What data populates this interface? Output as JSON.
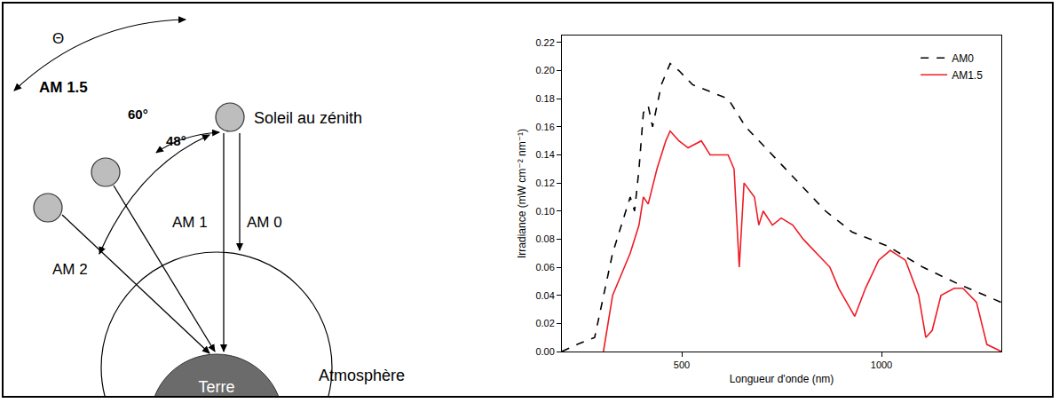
{
  "chart_data": {
    "type": "line",
    "x_label": "Longueur d'onde (nm)",
    "y_label": "Irradiance (mW cm⁻² nm⁻¹)",
    "xlim": [
      200,
      1300
    ],
    "xticks": [
      500,
      1000
    ],
    "ylim": [
      0,
      0.225
    ],
    "yticks": [
      {
        "value": 0,
        "label": "0.00"
      },
      {
        "value": 0.02,
        "label": "0.02"
      },
      {
        "value": 0.04,
        "label": "0.04"
      },
      {
        "value": 0.06,
        "label": "0.06"
      },
      {
        "value": 0.08,
        "label": "0.08"
      },
      {
        "value": 0.1,
        "label": "0.10"
      },
      {
        "value": 0.12,
        "label": "0.12"
      },
      {
        "value": 0.14,
        "label": "0.14"
      },
      {
        "value": 0.16,
        "label": "0.16"
      },
      {
        "value": 0.18,
        "label": "0.18"
      },
      {
        "value": 0.2,
        "label": "0.20"
      },
      {
        "value": 0.22,
        "label": "0.22"
      }
    ],
    "grid": false,
    "legend": "top-right",
    "series": [
      {
        "name": "AM0",
        "color": "#000000",
        "line_style": "dash",
        "x": [
          200,
          238,
          282,
          304,
          327,
          349,
          371,
          382,
          393,
          404,
          416,
          427,
          449,
          471,
          493,
          527,
          571,
          616,
          660,
          727,
          793,
          860,
          927,
          1016,
          1104,
          1193,
          1300
        ],
        "values": [
          0,
          0.005,
          0.01,
          0.04,
          0.07,
          0.09,
          0.11,
          0.1,
          0.13,
          0.17,
          0.175,
          0.16,
          0.19,
          0.205,
          0.2,
          0.19,
          0.185,
          0.18,
          0.16,
          0.14,
          0.12,
          0.1,
          0.085,
          0.075,
          0.06,
          0.048,
          0.035
        ]
      },
      {
        "name": "AM1.5",
        "color": "#ee1c25",
        "line_style": "solid",
        "x": [
          304,
          327,
          349,
          371,
          393,
          404,
          416,
          438,
          460,
          471,
          493,
          516,
          549,
          571,
          616,
          631,
          644,
          656,
          682,
          693,
          704,
          727,
          749,
          778,
          804,
          838,
          871,
          893,
          933,
          960,
          993,
          1022,
          1060,
          1093,
          1111,
          1127,
          1149,
          1182,
          1204,
          1238,
          1264,
          1300
        ],
        "values": [
          0,
          0.04,
          0.055,
          0.07,
          0.09,
          0.11,
          0.105,
          0.13,
          0.15,
          0.157,
          0.15,
          0.145,
          0.15,
          0.14,
          0.14,
          0.13,
          0.06,
          0.12,
          0.11,
          0.09,
          0.1,
          0.09,
          0.095,
          0.09,
          0.08,
          0.07,
          0.06,
          0.045,
          0.025,
          0.045,
          0.065,
          0.072,
          0.065,
          0.04,
          0.01,
          0.015,
          0.04,
          0.045,
          0.045,
          0.035,
          0.005,
          0
        ]
      }
    ]
  },
  "diagram": {
    "angle_symbol": "Θ",
    "am15": "AM 1.5",
    "angle_60": "60°",
    "angle_48": "48°",
    "sun_zenith": "Soleil au zénith",
    "am1": "AM 1",
    "am0": "AM 0",
    "am2": "AM 2",
    "atmosphere": "Atmosphère",
    "earth": "Terre"
  }
}
